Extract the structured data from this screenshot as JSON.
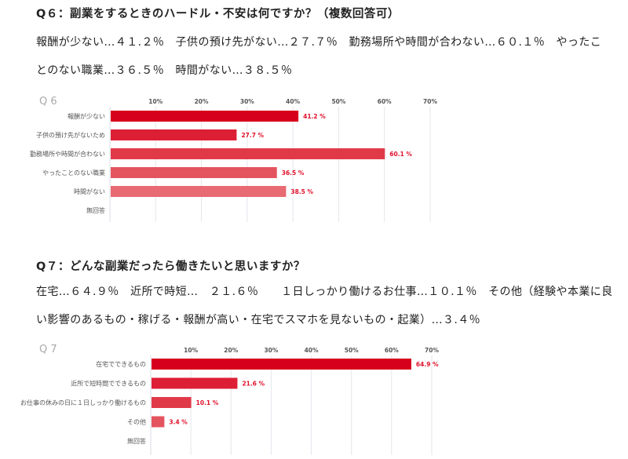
{
  "q6": {
    "title": "Q６：副業をするときのハードル・不安は何ですか？（複数回答可）",
    "lines": [
      "報酬が少ない…４１.２％　子供の預け先がない…２７.７％　勤務場所や時間が合わない…６０.１％　やったこ",
      "とのない職業…３６.５％　時間がない…３８.５％"
    ]
  },
  "q7": {
    "title": "Q７：どんな副業だったら働きたいと思いますか？",
    "lines": [
      "在宅…６４.９％　近所で時短…　２１.６％　　１日しっかり働けるお仕事…１０.１％　その他（経験や本業に良",
      "い影響のあるもの・稼げる・報酬が高い・在宅でスマホを見ないもの・起業）…３.４％"
    ]
  },
  "chart_data": [
    {
      "type": "bar",
      "orientation": "horizontal",
      "title": "Q 6",
      "categories": [
        "報酬が少ない",
        "子供の預け先がないため",
        "勤務場所や時間が合わない",
        "やったことのない職業",
        "時間がない",
        "無回答"
      ],
      "values": [
        41.2,
        27.7,
        60.1,
        36.5,
        38.5,
        null
      ],
      "value_labels": [
        "41.2 %",
        "27.7 %",
        "60.1 %",
        "36.5 %",
        "38.5 %",
        ""
      ],
      "xlim": [
        0,
        70
      ],
      "ticks": [
        "10%",
        "20%",
        "30%",
        "40%",
        "50%",
        "60%",
        "70%"
      ],
      "grid": true,
      "colors": [
        "#d7001c",
        "#dd1f35",
        "#e03a48",
        "#e4545e",
        "#e86a72"
      ],
      "label_color": "#e0102a"
    },
    {
      "type": "bar",
      "orientation": "horizontal",
      "title": "Q 7",
      "categories": [
        "在宅でできるもの",
        "近所で短時間でできるもの",
        "お仕事の休みの日に１日しっかり働けるもの",
        "その他",
        "無回答"
      ],
      "values": [
        64.9,
        21.6,
        10.1,
        3.4,
        null
      ],
      "value_labels": [
        "64.9 %",
        "21.6 %",
        "10.1 %",
        "3.4 %",
        ""
      ],
      "xlim": [
        0,
        70
      ],
      "ticks": [
        "10%",
        "20%",
        "30%",
        "40%",
        "50%",
        "60%",
        "70%"
      ],
      "grid": true,
      "colors": [
        "#d7001c",
        "#dd1f35",
        "#e03a48",
        "#e4545e"
      ],
      "label_color": "#e0102a"
    }
  ]
}
